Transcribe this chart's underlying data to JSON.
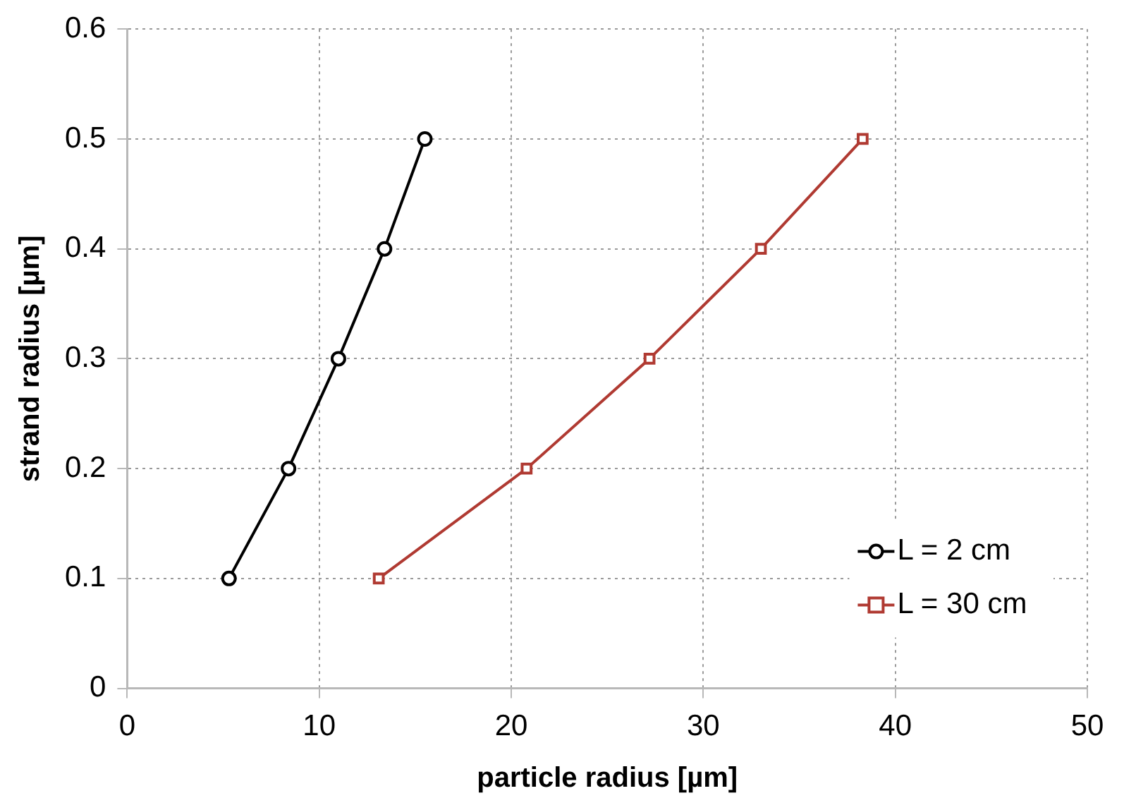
{
  "chart_data": {
    "type": "line",
    "xlabel": "particle radius [µm]",
    "ylabel": "strand radius [µm]",
    "xlim": [
      0,
      50
    ],
    "xticks": [
      0,
      10,
      20,
      30,
      40,
      50
    ],
    "ylim": [
      0,
      0.6
    ],
    "yticks": [
      0,
      0.1,
      0.2,
      0.3,
      0.4,
      0.5,
      0.6
    ],
    "grid": true,
    "legend": "bottom right",
    "line_style": "solid",
    "series": [
      {
        "name": "L = 2 cm",
        "color": "#000000",
        "marker": "circle",
        "x": [
          5.3,
          8.4,
          11.0,
          13.4,
          15.5
        ],
        "values": [
          0.1,
          0.2,
          0.3,
          0.4,
          0.5
        ]
      },
      {
        "name": "L = 30 cm",
        "color": "#b03a32",
        "marker": "square",
        "x": [
          13.1,
          20.8,
          27.2,
          33.0,
          38.3
        ],
        "values": [
          0.1,
          0.2,
          0.3,
          0.4,
          0.5
        ]
      }
    ]
  }
}
